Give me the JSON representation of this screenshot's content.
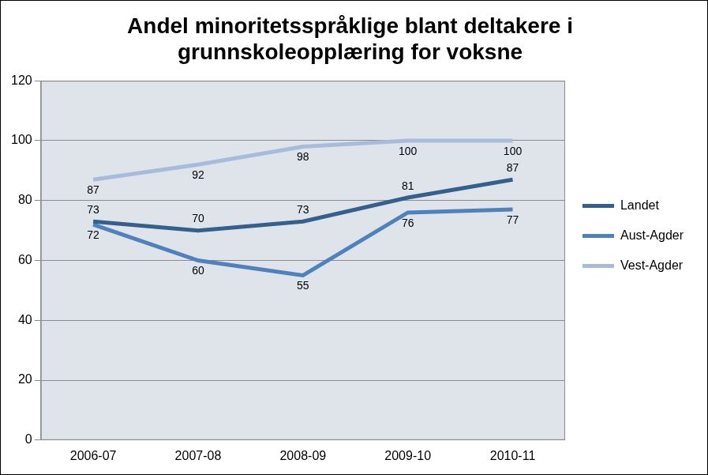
{
  "chart_data": {
    "type": "line",
    "title": [
      "Andel minoritetsspråklige blant deltakere i",
      "grunnskoleopplæring for voksne"
    ],
    "categories": [
      "2006-07",
      "2007-08",
      "2008-09",
      "2009-10",
      "2010-11"
    ],
    "series": [
      {
        "name": "Landet",
        "color": "#355f8d",
        "values": [
          73,
          70,
          73,
          81,
          87
        ]
      },
      {
        "name": "Aust-Agder",
        "color": "#4f81bd",
        "values": [
          72,
          60,
          55,
          76,
          77
        ]
      },
      {
        "name": "Vest-Agder",
        "color": "#a9bbdb",
        "values": [
          87,
          92,
          98,
          100,
          100
        ]
      }
    ],
    "ylim": [
      0,
      120
    ],
    "yticks": [
      0,
      20,
      40,
      60,
      80,
      100,
      120
    ],
    "grid": true,
    "legend": "right",
    "data_labels": true
  }
}
